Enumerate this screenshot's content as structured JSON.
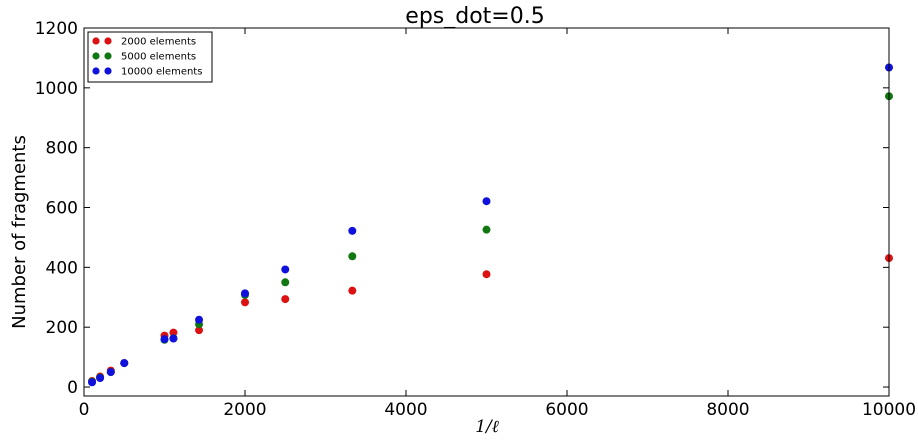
{
  "chart_data": {
    "type": "scatter",
    "title": "eps_dot=0.5",
    "xlabel": "1/ℓ",
    "ylabel": "Number of fragments",
    "xlim": [
      0,
      10000
    ],
    "ylim": [
      -30,
      1200
    ],
    "xticks": [
      0,
      2000,
      4000,
      6000,
      8000,
      10000
    ],
    "yticks": [
      0,
      200,
      400,
      600,
      800,
      1000,
      1200
    ],
    "grid": false,
    "legend_position": "top-left",
    "series": [
      {
        "name": "2000 elements",
        "color": "#dd1111",
        "x": [
          100,
          200,
          333,
          500,
          1000,
          1111,
          1429,
          2000,
          2500,
          3333,
          5000,
          10000
        ],
        "y": [
          20,
          35,
          55,
          80,
          172,
          182,
          190,
          283,
          294,
          322,
          377,
          431
        ]
      },
      {
        "name": "5000 elements",
        "color": "#117711",
        "x": [
          100,
          200,
          333,
          500,
          1000,
          1111,
          1429,
          2000,
          2500,
          3333,
          5000,
          10000
        ],
        "y": [
          18,
          32,
          50,
          80,
          158,
          163,
          210,
          308,
          350,
          437,
          526,
          972
        ]
      },
      {
        "name": "10000 elements",
        "color": "#1111dd",
        "x": [
          100,
          200,
          333,
          500,
          1000,
          1111,
          1429,
          2000,
          2500,
          3333,
          5000,
          10000
        ],
        "y": [
          16,
          30,
          50,
          80,
          160,
          162,
          225,
          313,
          393,
          522,
          621,
          1068
        ]
      }
    ]
  }
}
